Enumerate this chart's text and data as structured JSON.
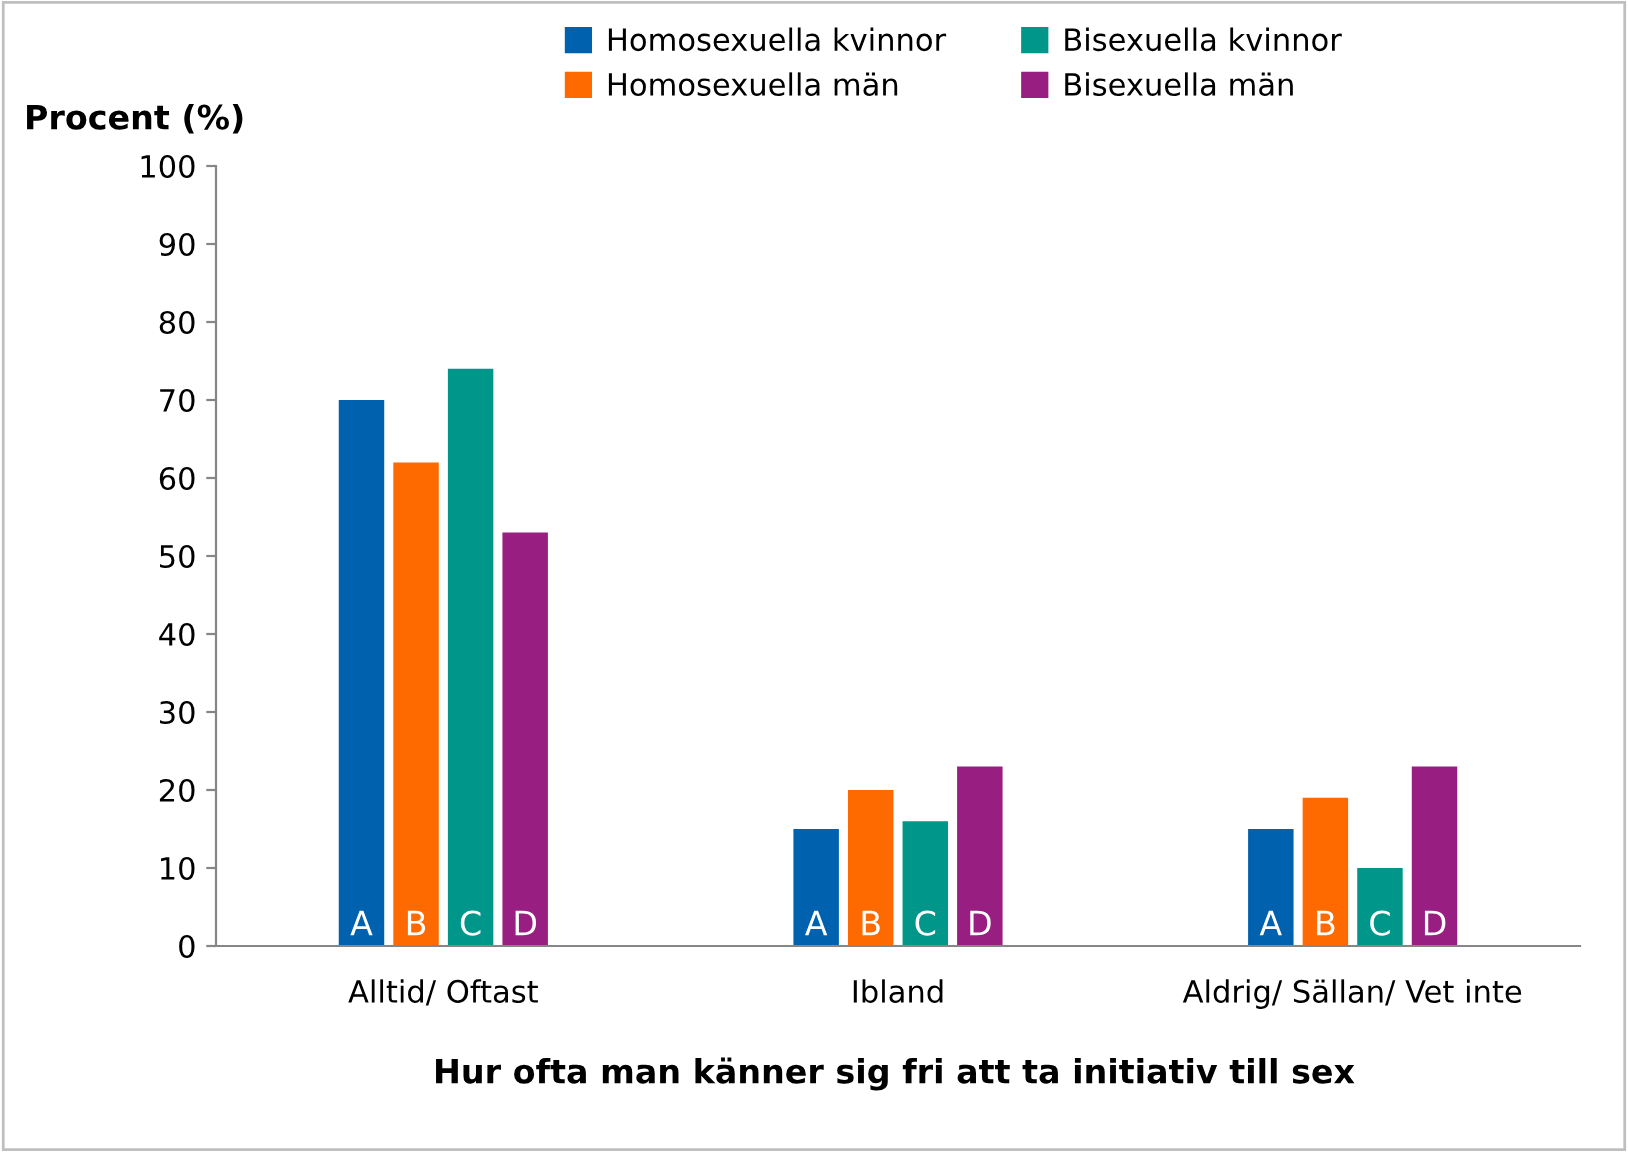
{
  "chart_data": {
    "type": "bar",
    "ylabel": "Procent (%)",
    "xlabel": "Hur ofta man känner sig fri att ta initiativ till sex",
    "categories": [
      "Alltid/ Oftast",
      "Ibland",
      "Aldrig/ Sällan/ Vet inte"
    ],
    "series": [
      {
        "name": "Homosexuella kvinnor",
        "color": "#0061ae",
        "values": [
          70,
          15,
          15
        ],
        "value_labels": [
          "A",
          "A",
          "A"
        ]
      },
      {
        "name": "Homosexuella män",
        "color": "#ff6a00",
        "values": [
          62,
          20,
          19
        ],
        "value_labels": [
          "B",
          "B",
          "B"
        ]
      },
      {
        "name": "Bisexuella kvinnor",
        "color": "#00978a",
        "values": [
          74,
          16,
          10
        ],
        "value_labels": [
          "C",
          "C",
          "C"
        ]
      },
      {
        "name": "Bisexuella män",
        "color": "#991e82",
        "values": [
          53,
          23,
          23
        ],
        "value_labels": [
          "D",
          "D",
          "D"
        ]
      }
    ],
    "ylim": [
      0,
      100
    ],
    "yticks": [
      0,
      10,
      20,
      30,
      40,
      50,
      60,
      70,
      80,
      90,
      100
    ],
    "grid": false,
    "legend": "top"
  }
}
